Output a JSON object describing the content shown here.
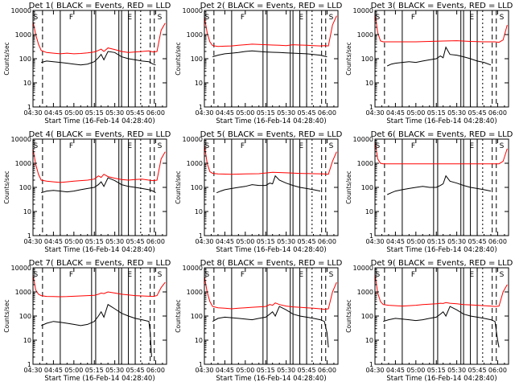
{
  "chart_data": {
    "type": "line",
    "layout": "3x3 grid of panels",
    "shared_axes": {
      "xlabel": "Start Time (16-Feb-14 04:28:40)",
      "ylabel": "Counts/sec",
      "x_ticks": [
        "04:30",
        "04:45",
        "05:00",
        "05:15",
        "05:30",
        "05:45",
        "06:00"
      ],
      "x_tick_minutes": [
        0,
        15,
        30,
        45,
        60,
        75,
        90
      ],
      "xlim_minutes": [
        0,
        98
      ],
      "ylog": true,
      "ylim": [
        1,
        10000
      ],
      "y_ticks": [
        "1",
        "10",
        "100",
        "1000",
        "10000"
      ]
    },
    "series_colors": {
      "events": "#000000",
      "lld": "#ff0000"
    },
    "panels": [
      {
        "title": "Det 1( BLACK = Events, RED = LLD",
        "letters": [
          "S",
          "F",
          "E",
          "S"
        ],
        "x": [
          0,
          2,
          4,
          6,
          10,
          15,
          20,
          25,
          30,
          35,
          40,
          45,
          48,
          50,
          52,
          55,
          60,
          65,
          70,
          75,
          80,
          85,
          88,
          91,
          94,
          97
        ],
        "lld": [
          3500,
          1000,
          400,
          220,
          180,
          170,
          160,
          170,
          160,
          165,
          175,
          190,
          220,
          250,
          200,
          280,
          240,
          200,
          180,
          190,
          200,
          210,
          190,
          200,
          1500,
          3000
        ],
        "events_x": [
          6,
          10,
          15,
          20,
          25,
          30,
          35,
          40,
          45,
          48,
          50,
          52,
          55,
          60,
          65,
          70,
          75,
          80,
          85,
          88,
          90
        ],
        "events": [
          70,
          80,
          75,
          70,
          65,
          60,
          55,
          60,
          75,
          110,
          150,
          90,
          200,
          180,
          120,
          100,
          90,
          80,
          75,
          60,
          55
        ]
      },
      {
        "title": "Det 2( BLACK = Events, RED = LLD",
        "letters": [
          "S",
          "F",
          "E",
          "S"
        ],
        "x": [
          0,
          2,
          4,
          6,
          10,
          15,
          20,
          25,
          30,
          35,
          40,
          45,
          50,
          55,
          60,
          65,
          70,
          75,
          80,
          85,
          88,
          91,
          94,
          97
        ],
        "lld": [
          5500,
          1200,
          500,
          350,
          320,
          330,
          340,
          360,
          380,
          400,
          390,
          380,
          370,
          360,
          350,
          380,
          370,
          360,
          350,
          340,
          350,
          340,
          2500,
          6000
        ],
        "events_x": [
          6,
          10,
          15,
          20,
          25,
          30,
          35,
          40,
          45,
          50,
          55,
          60,
          65,
          70,
          75,
          80,
          85,
          90
        ],
        "events": [
          120,
          140,
          160,
          170,
          180,
          200,
          210,
          200,
          190,
          185,
          180,
          175,
          170,
          165,
          160,
          150,
          140,
          120
        ]
      },
      {
        "title": "Det 3( BLACK = Events, RED = LLD",
        "letters": [
          "S",
          "F",
          "E",
          "S"
        ],
        "x": [
          0,
          2,
          4,
          6,
          10,
          20,
          30,
          40,
          50,
          60,
          70,
          80,
          88,
          91,
          94,
          97
        ],
        "lld": [
          7000,
          1200,
          550,
          500,
          500,
          500,
          500,
          520,
          540,
          560,
          520,
          500,
          500,
          480,
          600,
          2500
        ],
        "events_x": [
          9,
          12,
          15,
          20,
          25,
          30,
          35,
          40,
          45,
          48,
          50,
          52,
          55,
          60,
          65,
          70,
          75,
          80,
          85
        ],
        "events": [
          50,
          60,
          65,
          70,
          75,
          70,
          80,
          90,
          100,
          130,
          110,
          300,
          150,
          140,
          120,
          100,
          80,
          70,
          55
        ]
      },
      {
        "title": "Det 4( BLACK = Events, RED = LLD",
        "letters": [
          "S",
          "F",
          "E",
          "S"
        ],
        "x": [
          0,
          2,
          4,
          6,
          10,
          15,
          20,
          25,
          30,
          35,
          40,
          45,
          48,
          50,
          52,
          55,
          60,
          65,
          70,
          75,
          80,
          85,
          88,
          91,
          94,
          97
        ],
        "lld": [
          4000,
          900,
          350,
          200,
          180,
          170,
          160,
          170,
          180,
          190,
          200,
          220,
          300,
          260,
          350,
          280,
          240,
          210,
          200,
          210,
          220,
          200,
          190,
          200,
          1500,
          3000
        ],
        "events_x": [
          6,
          10,
          15,
          20,
          25,
          30,
          35,
          40,
          45,
          48,
          50,
          52,
          55,
          60,
          65,
          70,
          75,
          80,
          85,
          88,
          90
        ],
        "events": [
          60,
          70,
          75,
          70,
          65,
          70,
          80,
          90,
          100,
          130,
          170,
          110,
          250,
          190,
          130,
          110,
          100,
          90,
          80,
          70,
          60
        ]
      },
      {
        "title": "Det 5( BLACK = Events, RED = LLD",
        "letters": [
          "S",
          "F",
          "E",
          "S"
        ],
        "x": [
          0,
          2,
          4,
          6,
          10,
          20,
          30,
          40,
          50,
          60,
          70,
          80,
          88,
          91,
          94,
          97
        ],
        "lld": [
          6000,
          1000,
          450,
          380,
          360,
          350,
          360,
          370,
          420,
          400,
          380,
          370,
          360,
          350,
          1200,
          3000
        ],
        "events_x": [
          9,
          12,
          15,
          20,
          25,
          30,
          35,
          40,
          45,
          48,
          50,
          52,
          55,
          60,
          65,
          70,
          75,
          80,
          85
        ],
        "events": [
          60,
          70,
          80,
          90,
          100,
          110,
          130,
          120,
          120,
          150,
          140,
          300,
          200,
          150,
          120,
          100,
          90,
          80,
          70
        ]
      },
      {
        "title": "Det 6( BLACK = Events, RED = LLD",
        "letters": [
          "S",
          "F",
          "E",
          "S"
        ],
        "x": [
          0,
          2,
          4,
          6,
          10,
          20,
          30,
          40,
          50,
          60,
          70,
          80,
          88,
          91,
          94,
          97
        ],
        "lld": [
          8000,
          1500,
          1000,
          950,
          950,
          950,
          950,
          950,
          950,
          950,
          950,
          950,
          950,
          950,
          1200,
          4000
        ],
        "events_x": [
          9,
          12,
          15,
          20,
          25,
          30,
          35,
          40,
          45,
          48,
          50,
          52,
          55,
          60,
          65,
          70,
          75,
          80,
          85
        ],
        "events": [
          50,
          60,
          70,
          80,
          90,
          100,
          110,
          100,
          100,
          120,
          140,
          300,
          180,
          150,
          120,
          100,
          90,
          80,
          70
        ]
      },
      {
        "title": "Det 7( BLACK = Events, RED = LLD",
        "letters": [
          "S",
          "F",
          "E",
          "S"
        ],
        "x": [
          0,
          2,
          4,
          6,
          10,
          15,
          20,
          25,
          30,
          35,
          40,
          45,
          48,
          50,
          52,
          55,
          60,
          65,
          70,
          75,
          80,
          85,
          88,
          91,
          94,
          97
        ],
        "lld": [
          5000,
          1200,
          800,
          700,
          650,
          640,
          630,
          640,
          660,
          680,
          700,
          720,
          800,
          900,
          850,
          1000,
          900,
          800,
          750,
          700,
          680,
          660,
          650,
          700,
          1500,
          2500
        ],
        "events_x": [
          6,
          10,
          15,
          20,
          25,
          30,
          35,
          40,
          45,
          48,
          50,
          52,
          55,
          60,
          65,
          70,
          75,
          80,
          85,
          86,
          87
        ],
        "events": [
          40,
          50,
          60,
          55,
          50,
          45,
          40,
          45,
          60,
          100,
          150,
          90,
          300,
          200,
          130,
          100,
          80,
          70,
          60,
          20,
          2
        ]
      },
      {
        "title": "Det 8( BLACK = Events, RED = LLD",
        "letters": [
          "S",
          "F",
          "E",
          "S"
        ],
        "x": [
          0,
          2,
          4,
          6,
          10,
          15,
          20,
          25,
          30,
          35,
          40,
          45,
          48,
          50,
          52,
          55,
          60,
          65,
          70,
          75,
          80,
          85,
          88,
          91,
          94,
          97
        ],
        "lld": [
          4500,
          1000,
          400,
          250,
          220,
          210,
          200,
          210,
          220,
          230,
          240,
          250,
          300,
          280,
          350,
          300,
          260,
          240,
          230,
          220,
          210,
          200,
          190,
          200,
          1000,
          2500
        ],
        "events_x": [
          6,
          10,
          15,
          20,
          25,
          30,
          35,
          40,
          45,
          48,
          50,
          52,
          55,
          60,
          65,
          70,
          75,
          80,
          85,
          88,
          90,
          91
        ],
        "events": [
          60,
          80,
          90,
          85,
          80,
          75,
          70,
          80,
          90,
          120,
          150,
          100,
          250,
          180,
          120,
          100,
          90,
          80,
          70,
          60,
          20,
          5
        ]
      },
      {
        "title": "Det 9( BLACK = Events, RED = LLD",
        "letters": [
          "S",
          "F",
          "E",
          "S"
        ],
        "x": [
          0,
          2,
          4,
          6,
          10,
          15,
          20,
          25,
          30,
          35,
          40,
          45,
          48,
          50,
          52,
          55,
          60,
          65,
          70,
          75,
          80,
          85,
          88,
          91,
          94,
          97
        ],
        "lld": [
          5500,
          900,
          400,
          300,
          280,
          270,
          260,
          270,
          280,
          300,
          310,
          320,
          340,
          330,
          360,
          340,
          320,
          300,
          290,
          280,
          270,
          260,
          250,
          260,
          1000,
          2000
        ],
        "events_x": [
          6,
          10,
          15,
          20,
          25,
          30,
          35,
          40,
          45,
          48,
          50,
          52,
          55,
          60,
          65,
          70,
          75,
          80,
          85,
          88,
          90,
          91
        ],
        "events": [
          60,
          70,
          80,
          75,
          70,
          65,
          70,
          80,
          90,
          120,
          150,
          100,
          250,
          180,
          120,
          100,
          90,
          80,
          70,
          60,
          10,
          5
        ]
      }
    ]
  }
}
